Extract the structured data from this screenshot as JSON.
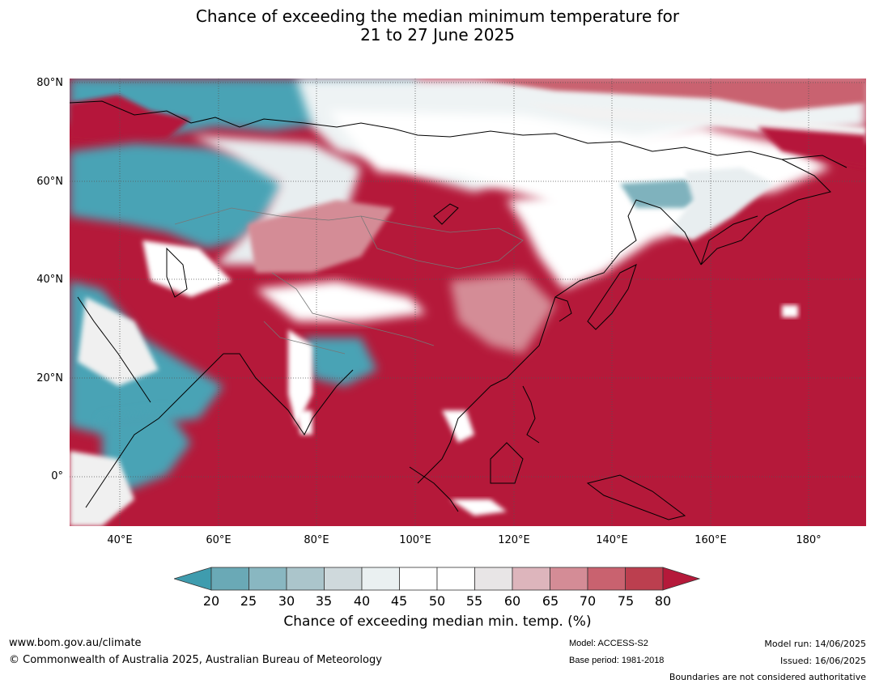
{
  "title": {
    "line1": "Chance of exceeding the median minimum temperature for",
    "line2": "21 to 27 June 2025"
  },
  "map": {
    "lat_labels": [
      "80°N",
      "60°N",
      "40°N",
      "20°N",
      "0°"
    ],
    "lon_labels": [
      "40°E",
      "60°E",
      "80°E",
      "100°E",
      "120°E",
      "140°E",
      "160°E",
      "180°"
    ],
    "extent": {
      "lon_min": 30,
      "lon_max": 191,
      "lat_min": -10,
      "lat_max": 81
    },
    "colors": {
      "dominant": "#b5193a",
      "low": "#4aa3b5",
      "neutral": "#ffffff"
    }
  },
  "colorbar": {
    "label": "Chance of exceeding median min. temp. (%)",
    "ticks": [
      "20",
      "25",
      "30",
      "35",
      "40",
      "45",
      "50",
      "55",
      "60",
      "65",
      "70",
      "75",
      "80"
    ],
    "colors": [
      "#3f9cae",
      "#6aa9b6",
      "#89b7c1",
      "#abc5cb",
      "#cfd9dc",
      "#eaf0f1",
      "#ffffff",
      "#ffffff",
      "#e8e5e6",
      "#ddb5bc",
      "#d48c96",
      "#c9626f",
      "#bc3f4f",
      "#b5193a"
    ],
    "extend": "both"
  },
  "footer": {
    "website": "www.bom.gov.au/climate",
    "copyright": "© Commonwealth of Australia 2025, Australian Bureau of Meteorology",
    "model": "Model: ACCESS-S2",
    "base_period": "Base period: 1981-2018",
    "model_run": "Model run: 14/06/2025",
    "issued": "Issued: 16/06/2025",
    "disclaimer": "Boundaries are not considered authoritative"
  }
}
